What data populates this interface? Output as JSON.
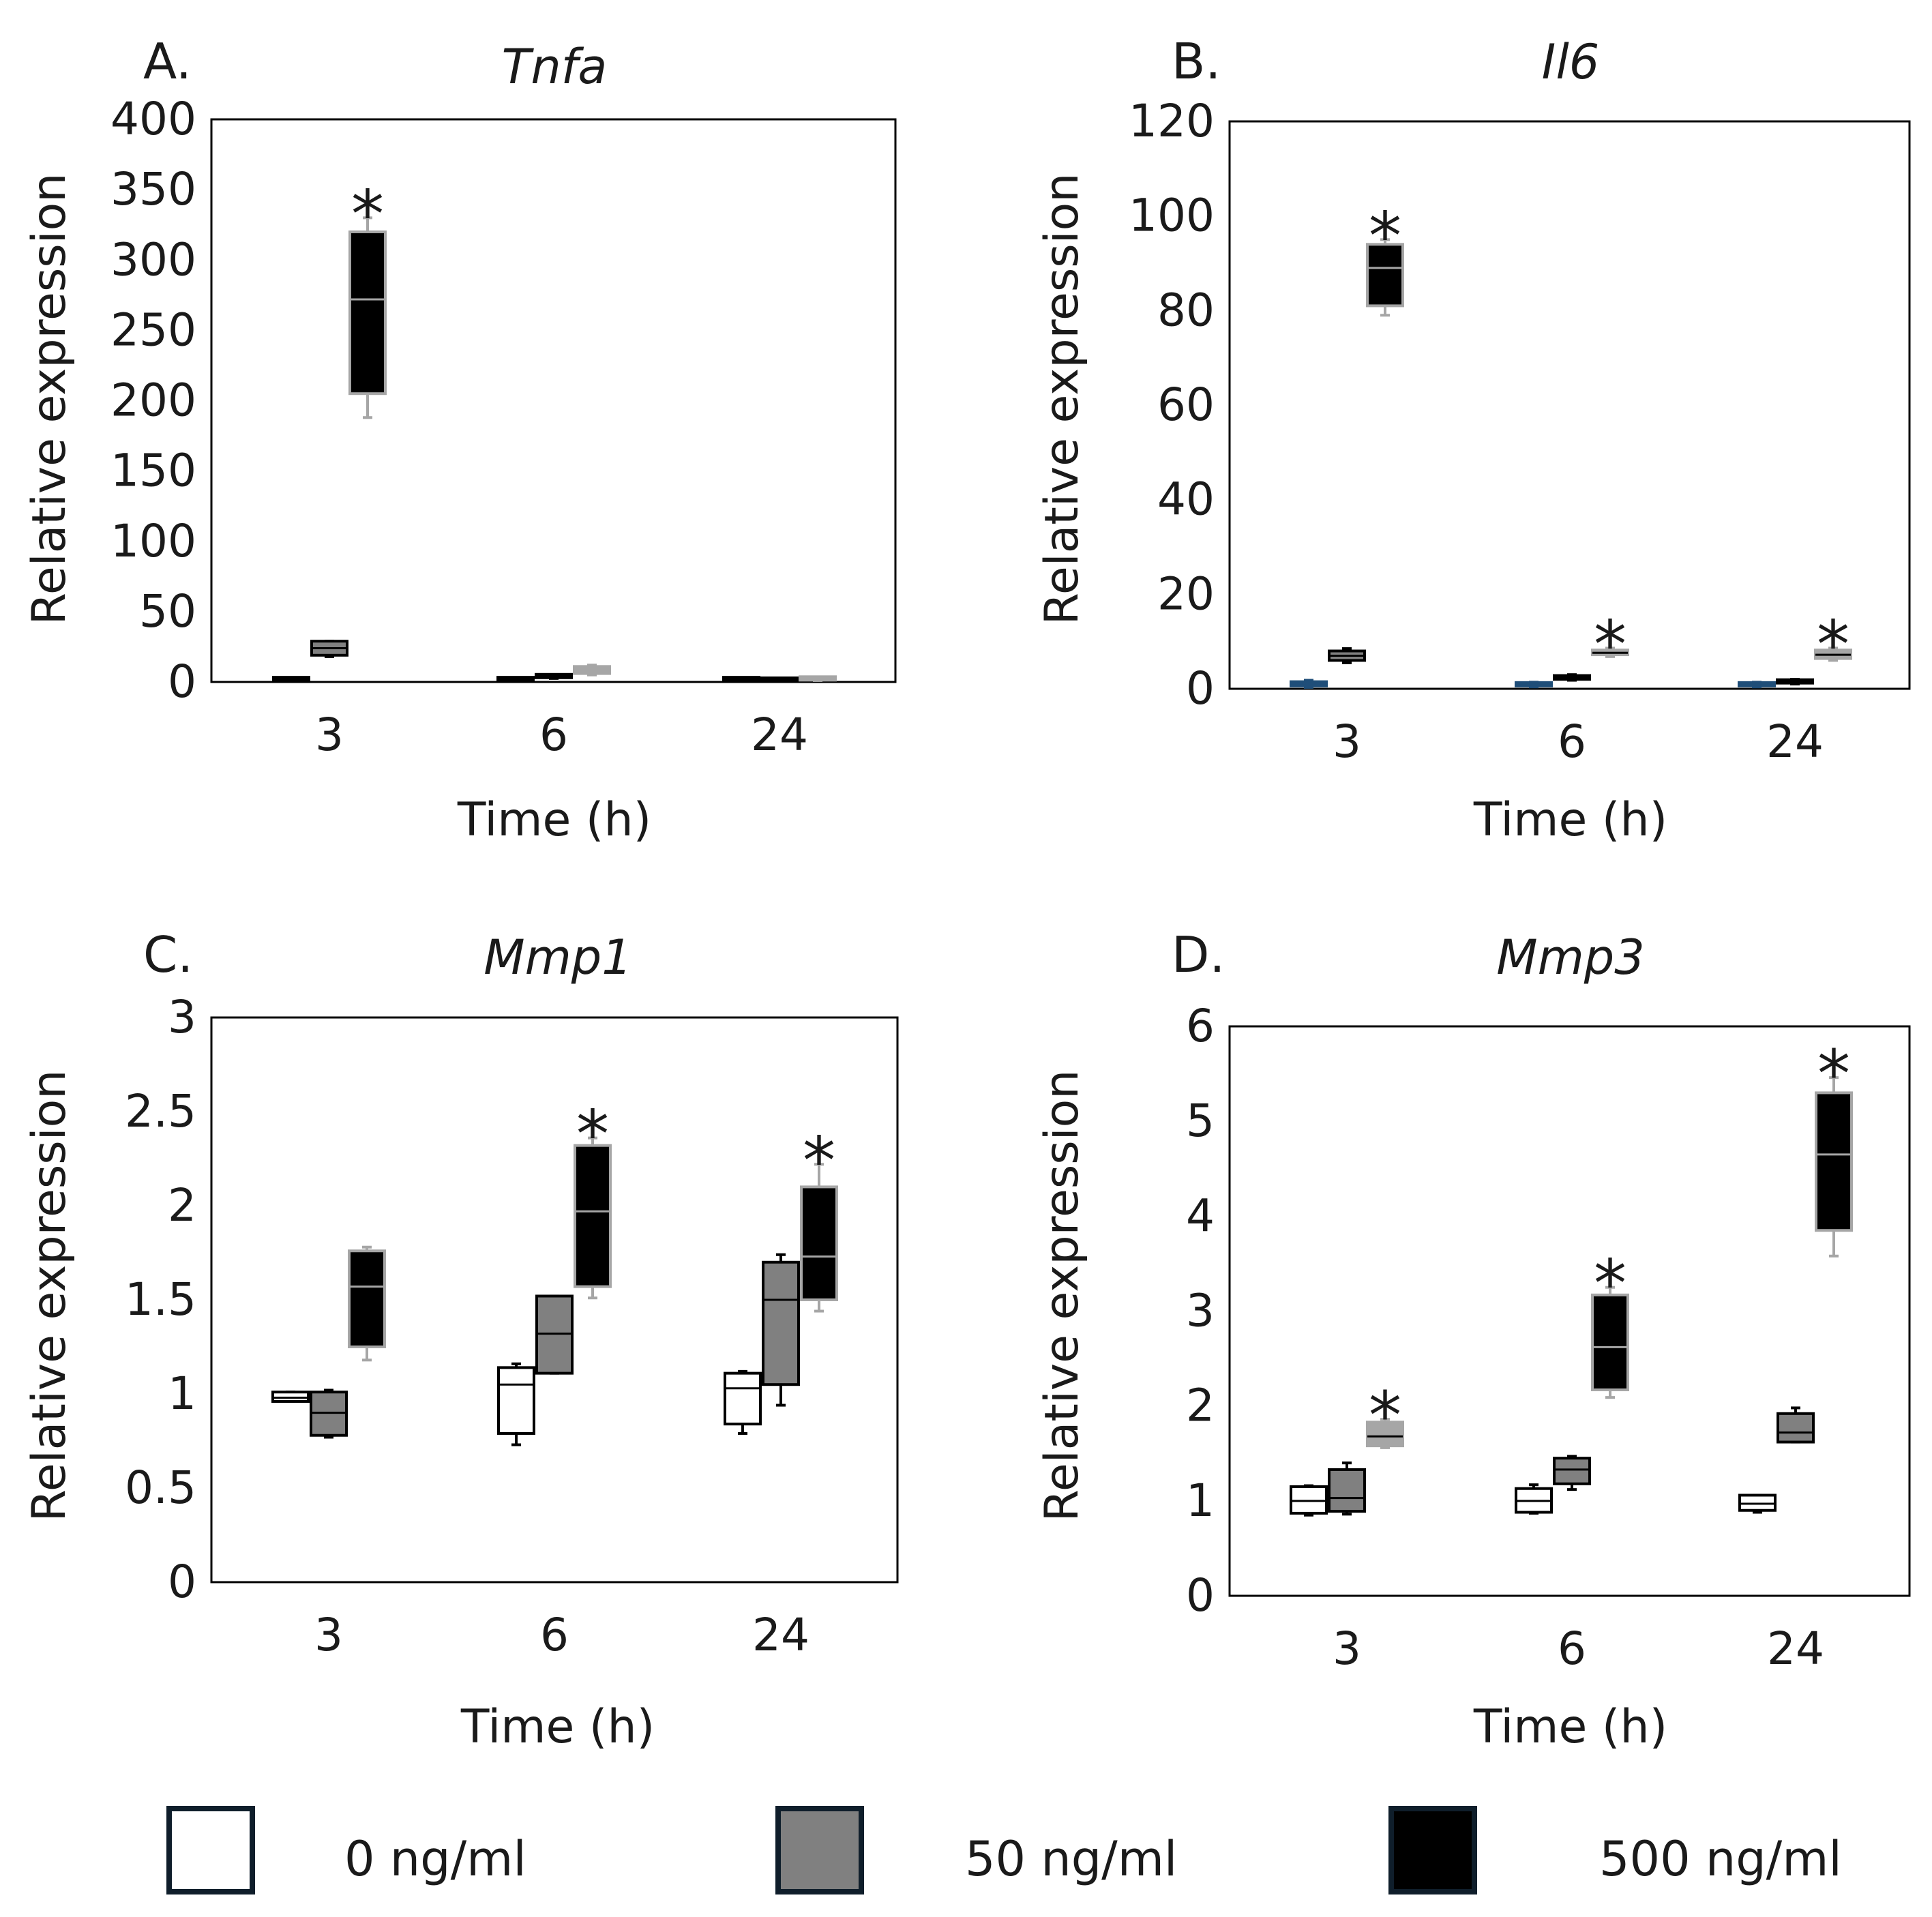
{
  "colors": {
    "dose_0": "#ffffff",
    "dose_50": "#808080",
    "dose_500": "#000000",
    "legend_border": "#0f1e2b",
    "axis": "#000000",
    "whisker_light": "#a6a6a6",
    "whisker_dark": "#000000",
    "blue_accent": "#1f4e79"
  },
  "legend": {
    "items": [
      {
        "label": "0 ng/ml",
        "color": "#ffffff"
      },
      {
        "label": "50 ng/ml",
        "color": "#808080"
      },
      {
        "label": "500 ng/ml",
        "color": "#000000"
      }
    ]
  },
  "chart_data": [
    {
      "panel": "A.",
      "title": "Tnfa",
      "type": "box",
      "xlabel": "Time (h)",
      "ylabel": "Relative expression",
      "ylim": [
        0,
        400
      ],
      "yticks": [
        0,
        50,
        100,
        150,
        200,
        250,
        300,
        350,
        400
      ],
      "ytick_labels": [
        "0",
        "50",
        "100",
        "150",
        "200",
        "250",
        "300",
        "350",
        "400"
      ],
      "categories": [
        "3",
        "6",
        "24"
      ],
      "series": [
        {
          "name": "0 ng/ml",
          "boxes": [
            {
              "min": 0.8,
              "q1": 0.9,
              "median": 1.0,
              "q3": 1.1,
              "max": 1.2,
              "fill": "#000000",
              "stroke": "#000000",
              "median_color": "#000000"
            },
            {
              "min": 0.8,
              "q1": 0.9,
              "median": 1.0,
              "q3": 1.1,
              "max": 1.2,
              "fill": "#000000",
              "stroke": "#000000",
              "median_color": "#000000"
            },
            {
              "min": 0.8,
              "q1": 0.9,
              "median": 1.0,
              "q3": 1.1,
              "max": 1.2,
              "fill": "#000000",
              "stroke": "#000000",
              "median_color": "#000000"
            }
          ]
        },
        {
          "name": "50 ng/ml",
          "boxes": [
            {
              "min": 18,
              "q1": 19,
              "median": 24,
              "q3": 29,
              "max": 29,
              "fill": "#808080",
              "stroke": "#000000",
              "median_color": "#000000"
            },
            {
              "min": 2.5,
              "q1": 3,
              "median": 3.5,
              "q3": 4.5,
              "max": 5,
              "fill": "#000000",
              "stroke": "#000000",
              "median_color": "#000000"
            },
            {
              "min": 0.3,
              "q1": 0.5,
              "median": 0.7,
              "q3": 0.9,
              "max": 1.0,
              "fill": "#000000",
              "stroke": "#000000",
              "median_color": "#000000"
            }
          ]
        },
        {
          "name": "500 ng/ml",
          "boxes": [
            {
              "min": 188,
              "q1": 205,
              "median": 272,
              "q3": 320,
              "max": 330,
              "fill": "#000000",
              "stroke": "#a6a6a6",
              "median_color": "#a6a6a6",
              "whisker_color": "#a6a6a6"
            },
            {
              "min": 5,
              "q1": 6,
              "median": 9,
              "q3": 11,
              "max": 12,
              "fill": "#a6a6a6",
              "stroke": "#a6a6a6",
              "median_color": "#a6a6a6"
            },
            {
              "min": 1.0,
              "q1": 1.3,
              "median": 1.8,
              "q3": 2.3,
              "max": 2.6,
              "fill": "#a6a6a6",
              "stroke": "#a6a6a6",
              "median_color": "#a6a6a6"
            }
          ]
        }
      ],
      "significance": [
        {
          "category": "3",
          "series": 2,
          "label": "*"
        }
      ]
    },
    {
      "panel": "B.",
      "title": "Il6",
      "type": "box",
      "xlabel": "Time (h)",
      "ylabel": "Relative expression",
      "ylim": [
        0,
        120
      ],
      "yticks": [
        0,
        20,
        40,
        60,
        80,
        100,
        120
      ],
      "ytick_labels": [
        "0",
        "20",
        "40",
        "60",
        "80",
        "100",
        "120"
      ],
      "categories": [
        "3",
        "6",
        "24"
      ],
      "series": [
        {
          "name": "0 ng/ml",
          "boxes": [
            {
              "min": 0.3,
              "q1": 0.6,
              "median": 1.0,
              "q3": 1.5,
              "max": 1.8,
              "fill": "#1f4e79",
              "stroke": "#1f4e79",
              "median_color": "#1f4e79"
            },
            {
              "min": 0.4,
              "q1": 0.6,
              "median": 0.9,
              "q3": 1.2,
              "max": 1.4,
              "fill": "#1f4e79",
              "stroke": "#1f4e79",
              "median_color": "#1f4e79"
            },
            {
              "min": 0.4,
              "q1": 0.6,
              "median": 0.9,
              "q3": 1.2,
              "max": 1.4,
              "fill": "#1f4e79",
              "stroke": "#1f4e79",
              "median_color": "#1f4e79"
            }
          ]
        },
        {
          "name": "50 ng/ml",
          "boxes": [
            {
              "min": 5.5,
              "q1": 6.0,
              "median": 7.0,
              "q3": 8.0,
              "max": 8.5,
              "fill": "#808080",
              "stroke": "#000000",
              "median_color": "#000000"
            },
            {
              "min": 1.8,
              "q1": 2.0,
              "median": 2.4,
              "q3": 2.8,
              "max": 3.0,
              "fill": "#000000",
              "stroke": "#000000",
              "median_color": "#000000"
            },
            {
              "min": 1.0,
              "q1": 1.2,
              "median": 1.5,
              "q3": 1.8,
              "max": 2.0,
              "fill": "#000000",
              "stroke": "#000000",
              "median_color": "#000000"
            }
          ]
        },
        {
          "name": "500 ng/ml",
          "boxes": [
            {
              "min": 79,
              "q1": 81,
              "median": 89,
              "q3": 94,
              "max": 95,
              "fill": "#000000",
              "stroke": "#a6a6a6",
              "median_color": "#a6a6a6",
              "whisker_color": "#a6a6a6"
            },
            {
              "min": 6.8,
              "q1": 7.2,
              "median": 7.6,
              "q3": 8.2,
              "max": 8.6,
              "fill": "#a6a6a6",
              "stroke": "#a6a6a6",
              "median_color": "#000000"
            },
            {
              "min": 6.0,
              "q1": 6.4,
              "median": 7.2,
              "q3": 8.2,
              "max": 8.6,
              "fill": "#a6a6a6",
              "stroke": "#a6a6a6",
              "median_color": "#000000"
            }
          ]
        }
      ],
      "significance": [
        {
          "category": "3",
          "series": 2,
          "label": "*"
        },
        {
          "category": "6",
          "series": 2,
          "label": "*"
        },
        {
          "category": "24",
          "series": 2,
          "label": "*"
        }
      ]
    },
    {
      "panel": "C.",
      "title": "Mmp1",
      "type": "box",
      "xlabel": "Time (h)",
      "ylabel": "Relative expression",
      "ylim": [
        0,
        3
      ],
      "yticks": [
        0,
        0.5,
        1,
        1.5,
        2,
        2.5,
        3
      ],
      "ytick_labels": [
        "0",
        "0.5",
        "1",
        "1.5",
        "2",
        "2.5",
        "3"
      ],
      "categories": [
        "3",
        "6",
        "24"
      ],
      "series": [
        {
          "name": "0 ng/ml",
          "boxes": [
            {
              "min": 0.96,
              "q1": 0.96,
              "median": 0.98,
              "q3": 1.01,
              "max": 1.01,
              "fill": "#ffffff",
              "stroke": "#000000",
              "median_color": "#000000"
            },
            {
              "min": 0.73,
              "q1": 0.79,
              "median": 1.05,
              "q3": 1.14,
              "max": 1.16,
              "fill": "#ffffff",
              "stroke": "#000000",
              "median_color": "#000000"
            },
            {
              "min": 0.79,
              "q1": 0.84,
              "median": 1.03,
              "q3": 1.11,
              "max": 1.12,
              "fill": "#ffffff",
              "stroke": "#000000",
              "median_color": "#000000"
            }
          ]
        },
        {
          "name": "50 ng/ml",
          "boxes": [
            {
              "min": 0.77,
              "q1": 0.78,
              "median": 0.9,
              "q3": 1.01,
              "max": 1.02,
              "fill": "#808080",
              "stroke": "#000000",
              "median_color": "#000000"
            },
            {
              "min": 1.11,
              "q1": 1.11,
              "median": 1.32,
              "q3": 1.52,
              "max": 1.52,
              "fill": "#808080",
              "stroke": "#000000",
              "median_color": "#000000"
            },
            {
              "min": 0.94,
              "q1": 1.05,
              "median": 1.5,
              "q3": 1.7,
              "max": 1.74,
              "fill": "#808080",
              "stroke": "#000000",
              "median_color": "#000000"
            }
          ]
        },
        {
          "name": "500 ng/ml",
          "boxes": [
            {
              "min": 1.18,
              "q1": 1.25,
              "median": 1.57,
              "q3": 1.76,
              "max": 1.78,
              "fill": "#000000",
              "stroke": "#a6a6a6",
              "median_color": "#a6a6a6",
              "whisker_color": "#a6a6a6"
            },
            {
              "min": 1.51,
              "q1": 1.57,
              "median": 1.97,
              "q3": 2.32,
              "max": 2.36,
              "fill": "#000000",
              "stroke": "#a6a6a6",
              "median_color": "#a6a6a6",
              "whisker_color": "#a6a6a6"
            },
            {
              "min": 1.44,
              "q1": 1.5,
              "median": 1.73,
              "q3": 2.1,
              "max": 2.22,
              "fill": "#000000",
              "stroke": "#a6a6a6",
              "median_color": "#a6a6a6",
              "whisker_color": "#a6a6a6"
            }
          ]
        }
      ],
      "significance": [
        {
          "category": "6",
          "series": 2,
          "label": "*"
        },
        {
          "category": "24",
          "series": 2,
          "label": "*"
        }
      ]
    },
    {
      "panel": "D.",
      "title": "Mmp3",
      "type": "box",
      "xlabel": "Time (h)",
      "ylabel": "Relative expression",
      "ylim": [
        0,
        6
      ],
      "yticks": [
        0,
        1,
        2,
        3,
        4,
        5,
        6
      ],
      "ytick_labels": [
        "0",
        "1",
        "2",
        "3",
        "4",
        "5",
        "6"
      ],
      "categories": [
        "3",
        "6",
        "24"
      ],
      "series": [
        {
          "name": "0 ng/ml",
          "boxes": [
            {
              "min": 0.85,
              "q1": 0.87,
              "median": 1.0,
              "q3": 1.15,
              "max": 1.16,
              "fill": "#ffffff",
              "stroke": "#000000",
              "median_color": "#000000"
            },
            {
              "min": 0.87,
              "q1": 0.88,
              "median": 1.0,
              "q3": 1.13,
              "max": 1.17,
              "fill": "#ffffff",
              "stroke": "#000000",
              "median_color": "#000000"
            },
            {
              "min": 0.88,
              "q1": 0.9,
              "median": 0.97,
              "q3": 1.06,
              "max": 1.06,
              "fill": "#ffffff",
              "stroke": "#000000",
              "median_color": "#000000"
            }
          ]
        },
        {
          "name": "50 ng/ml",
          "boxes": [
            {
              "min": 0.86,
              "q1": 0.89,
              "median": 1.03,
              "q3": 1.33,
              "max": 1.4,
              "fill": "#808080",
              "stroke": "#000000",
              "median_color": "#000000"
            },
            {
              "min": 1.12,
              "q1": 1.18,
              "median": 1.33,
              "q3": 1.45,
              "max": 1.47,
              "fill": "#808080",
              "stroke": "#000000",
              "median_color": "#000000"
            },
            {
              "min": 1.62,
              "q1": 1.62,
              "median": 1.72,
              "q3": 1.92,
              "max": 1.98,
              "fill": "#808080",
              "stroke": "#000000",
              "median_color": "#000000"
            }
          ]
        },
        {
          "name": "500 ng/ml",
          "boxes": [
            {
              "min": 1.56,
              "q1": 1.58,
              "median": 1.68,
              "q3": 1.83,
              "max": 1.86,
              "fill": "#a6a6a6",
              "stroke": "#a6a6a6",
              "median_color": "#000000",
              "whisker_color": "#a6a6a6"
            },
            {
              "min": 2.09,
              "q1": 2.17,
              "median": 2.62,
              "q3": 3.17,
              "max": 3.25,
              "fill": "#000000",
              "stroke": "#a6a6a6",
              "median_color": "#a6a6a6",
              "whisker_color": "#a6a6a6"
            },
            {
              "min": 3.58,
              "q1": 3.85,
              "median": 4.65,
              "q3": 5.3,
              "max": 5.46,
              "fill": "#000000",
              "stroke": "#a6a6a6",
              "median_color": "#a6a6a6",
              "whisker_color": "#a6a6a6"
            }
          ]
        }
      ],
      "significance": [
        {
          "category": "3",
          "series": 2,
          "label": "*"
        },
        {
          "category": "6",
          "series": 2,
          "label": "*"
        },
        {
          "category": "24",
          "series": 2,
          "label": "*"
        }
      ]
    }
  ]
}
